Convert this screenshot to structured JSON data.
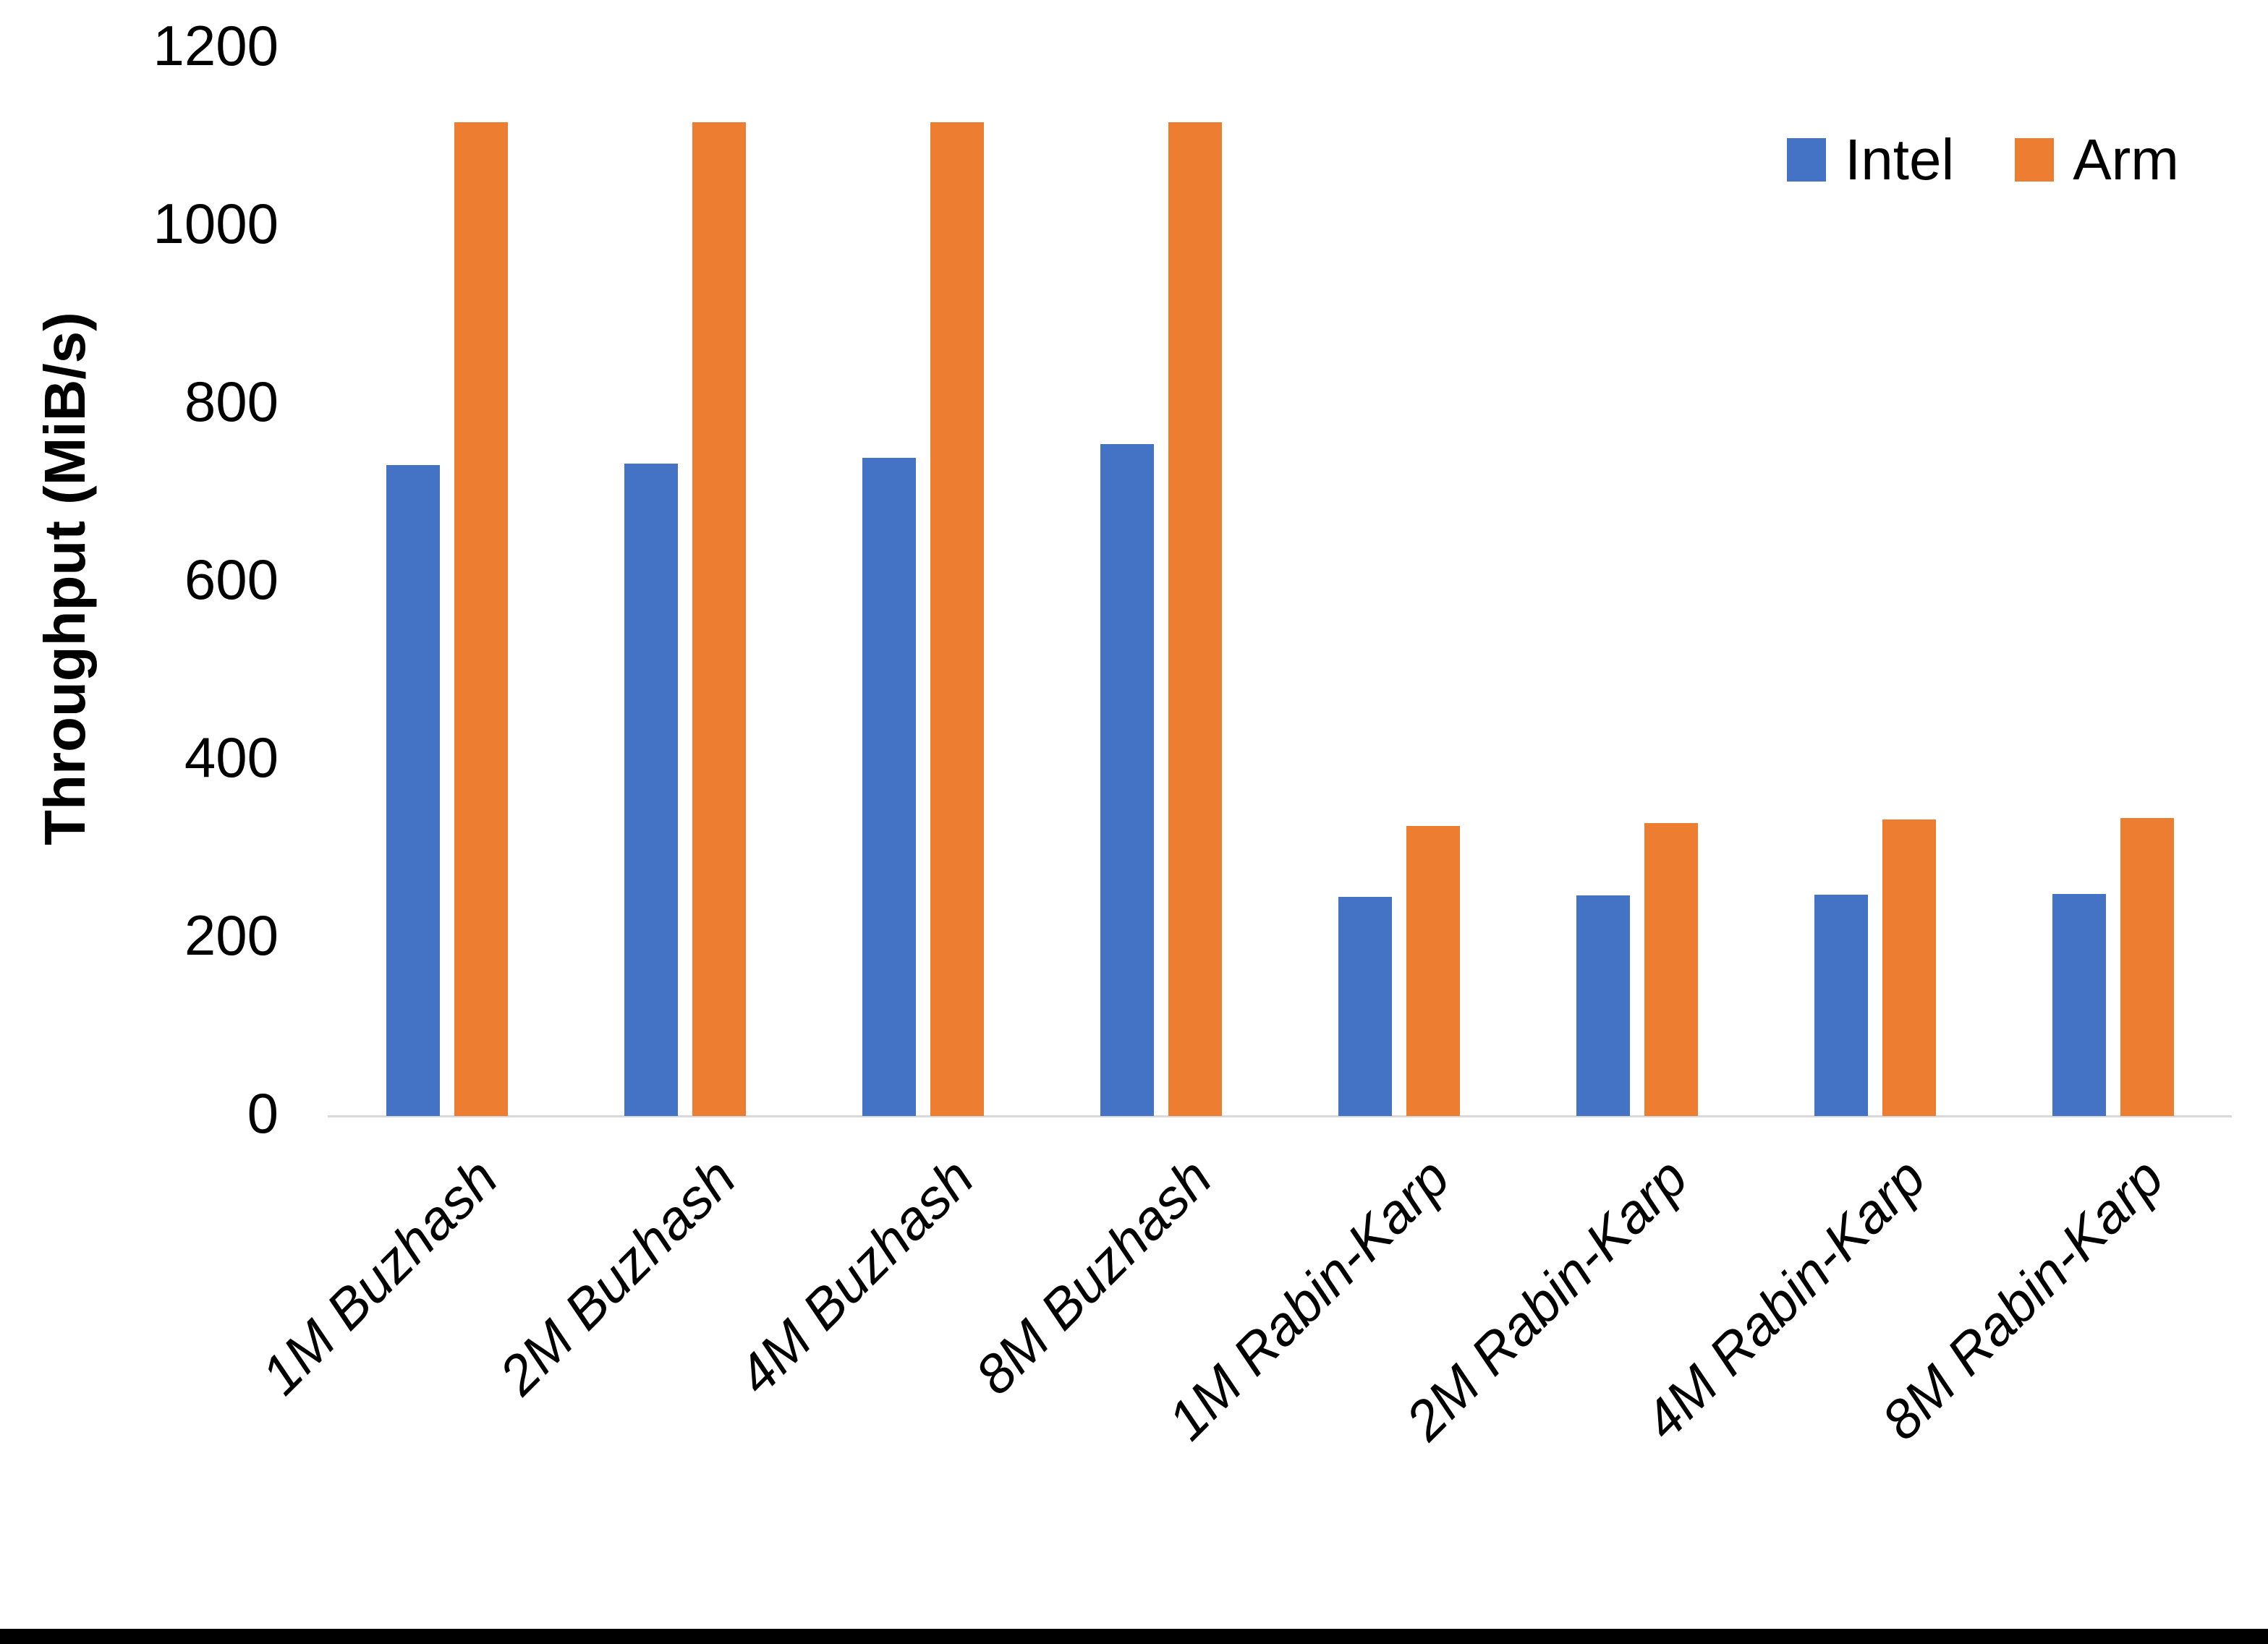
{
  "chart_data": {
    "type": "bar",
    "title": "",
    "xlabel": "",
    "ylabel": "Throughput (MiB/s)",
    "ylim": [
      0,
      1200
    ],
    "yticks": [
      0,
      200,
      400,
      600,
      800,
      1000,
      1200
    ],
    "grid": false,
    "legend_position": "top-right",
    "categories": [
      "1M Buzhash",
      "2M Buzhash",
      "4M Buzhash",
      "8M Buzhash",
      "1M Rabin-Karp",
      "2M Rabin-Karp",
      "4M Rabin-Karp",
      "8M Rabin-Karp"
    ],
    "series": [
      {
        "name": "Intel",
        "color": "#4472C4",
        "values": [
          732,
          733,
          740,
          755,
          246,
          248,
          249,
          250
        ]
      },
      {
        "name": "Arm",
        "color": "#ED7D31",
        "values": [
          1117,
          1117,
          1117,
          1117,
          326,
          329,
          333,
          335
        ]
      }
    ]
  },
  "colors": {
    "axis_line": "#D9D9D9",
    "text": "#000000",
    "bottom_border": "#000000"
  }
}
